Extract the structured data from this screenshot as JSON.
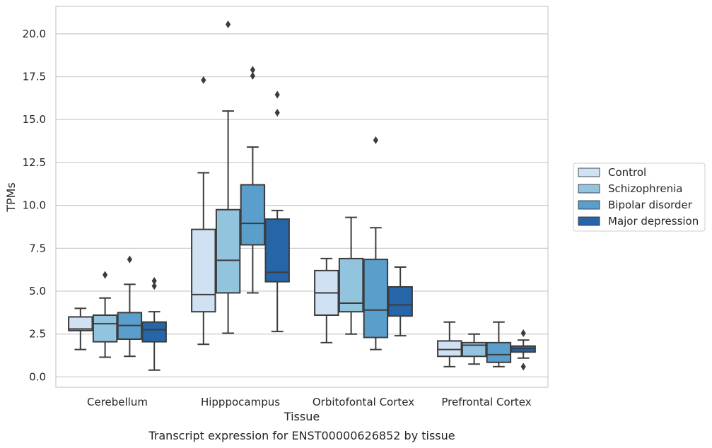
{
  "caption": "Transcript expression for ENST00000626852 by tissue",
  "chart_data": {
    "type": "box",
    "title": "",
    "xlabel": "Tissue",
    "ylabel": "TPMs",
    "ylim": [
      -0.6,
      21.6
    ],
    "yticks": [
      "0.0",
      "2.5",
      "5.0",
      "7.5",
      "10.0",
      "12.5",
      "15.0",
      "17.5",
      "20.0"
    ],
    "grid": "horizontal",
    "legend_position": "right",
    "categories": [
      "Cerebellum",
      "Hipppocampus",
      "Orbitofontal Cortex",
      "Prefrontal Cortex"
    ],
    "series": [
      {
        "name": "Control",
        "color": "#cfe1f2",
        "boxes": [
          {
            "whisker_low": 1.6,
            "q1": 2.7,
            "median": 2.8,
            "q3": 3.5,
            "whisker_high": 4.0,
            "outliers": []
          },
          {
            "whisker_low": 1.9,
            "q1": 3.8,
            "median": 4.8,
            "q3": 8.6,
            "whisker_high": 11.9,
            "outliers": [
              17.3
            ]
          },
          {
            "whisker_low": 2.0,
            "q1": 3.6,
            "median": 4.9,
            "q3": 6.2,
            "whisker_high": 6.9,
            "outliers": []
          },
          {
            "whisker_low": 0.6,
            "q1": 1.2,
            "median": 1.6,
            "q3": 2.1,
            "whisker_high": 3.2,
            "outliers": []
          }
        ]
      },
      {
        "name": "Schizophrenia",
        "color": "#93c4de",
        "boxes": [
          {
            "whisker_low": 1.15,
            "q1": 2.05,
            "median": 3.1,
            "q3": 3.6,
            "whisker_high": 4.6,
            "outliers": [
              5.95
            ]
          },
          {
            "whisker_low": 2.55,
            "q1": 4.9,
            "median": 6.8,
            "q3": 9.75,
            "whisker_high": 15.5,
            "outliers": [
              20.55
            ]
          },
          {
            "whisker_low": 2.5,
            "q1": 3.8,
            "median": 4.3,
            "q3": 6.9,
            "whisker_high": 9.3,
            "outliers": []
          },
          {
            "whisker_low": 0.75,
            "q1": 1.2,
            "median": 1.85,
            "q3": 2.0,
            "whisker_high": 2.5,
            "outliers": []
          }
        ]
      },
      {
        "name": "Bipolar disorder",
        "color": "#5a9fcc",
        "boxes": [
          {
            "whisker_low": 1.2,
            "q1": 2.2,
            "median": 3.0,
            "q3": 3.75,
            "whisker_high": 5.4,
            "outliers": [
              6.85
            ]
          },
          {
            "whisker_low": 4.9,
            "q1": 7.7,
            "median": 8.95,
            "q3": 11.2,
            "whisker_high": 13.4,
            "outliers": [
              17.55,
              17.9
            ]
          },
          {
            "whisker_low": 1.6,
            "q1": 2.3,
            "median": 3.9,
            "q3": 6.85,
            "whisker_high": 8.7,
            "outliers": [
              13.8
            ]
          },
          {
            "whisker_low": 0.6,
            "q1": 0.85,
            "median": 1.3,
            "q3": 2.0,
            "whisker_high": 3.2,
            "outliers": []
          }
        ]
      },
      {
        "name": "Major depression",
        "color": "#2666a8",
        "boxes": [
          {
            "whisker_low": 0.4,
            "q1": 2.05,
            "median": 2.75,
            "q3": 3.2,
            "whisker_high": 3.8,
            "outliers": [
              5.3,
              5.6
            ]
          },
          {
            "whisker_low": 2.65,
            "q1": 5.55,
            "median": 6.1,
            "q3": 9.2,
            "whisker_high": 9.7,
            "outliers": [
              15.4,
              16.45
            ]
          },
          {
            "whisker_low": 2.4,
            "q1": 3.55,
            "median": 4.2,
            "q3": 5.25,
            "whisker_high": 6.4,
            "outliers": []
          },
          {
            "whisker_low": 1.1,
            "q1": 1.45,
            "median": 1.65,
            "q3": 1.8,
            "whisker_high": 2.15,
            "outliers": [
              0.6,
              2.55
            ]
          }
        ]
      }
    ]
  }
}
